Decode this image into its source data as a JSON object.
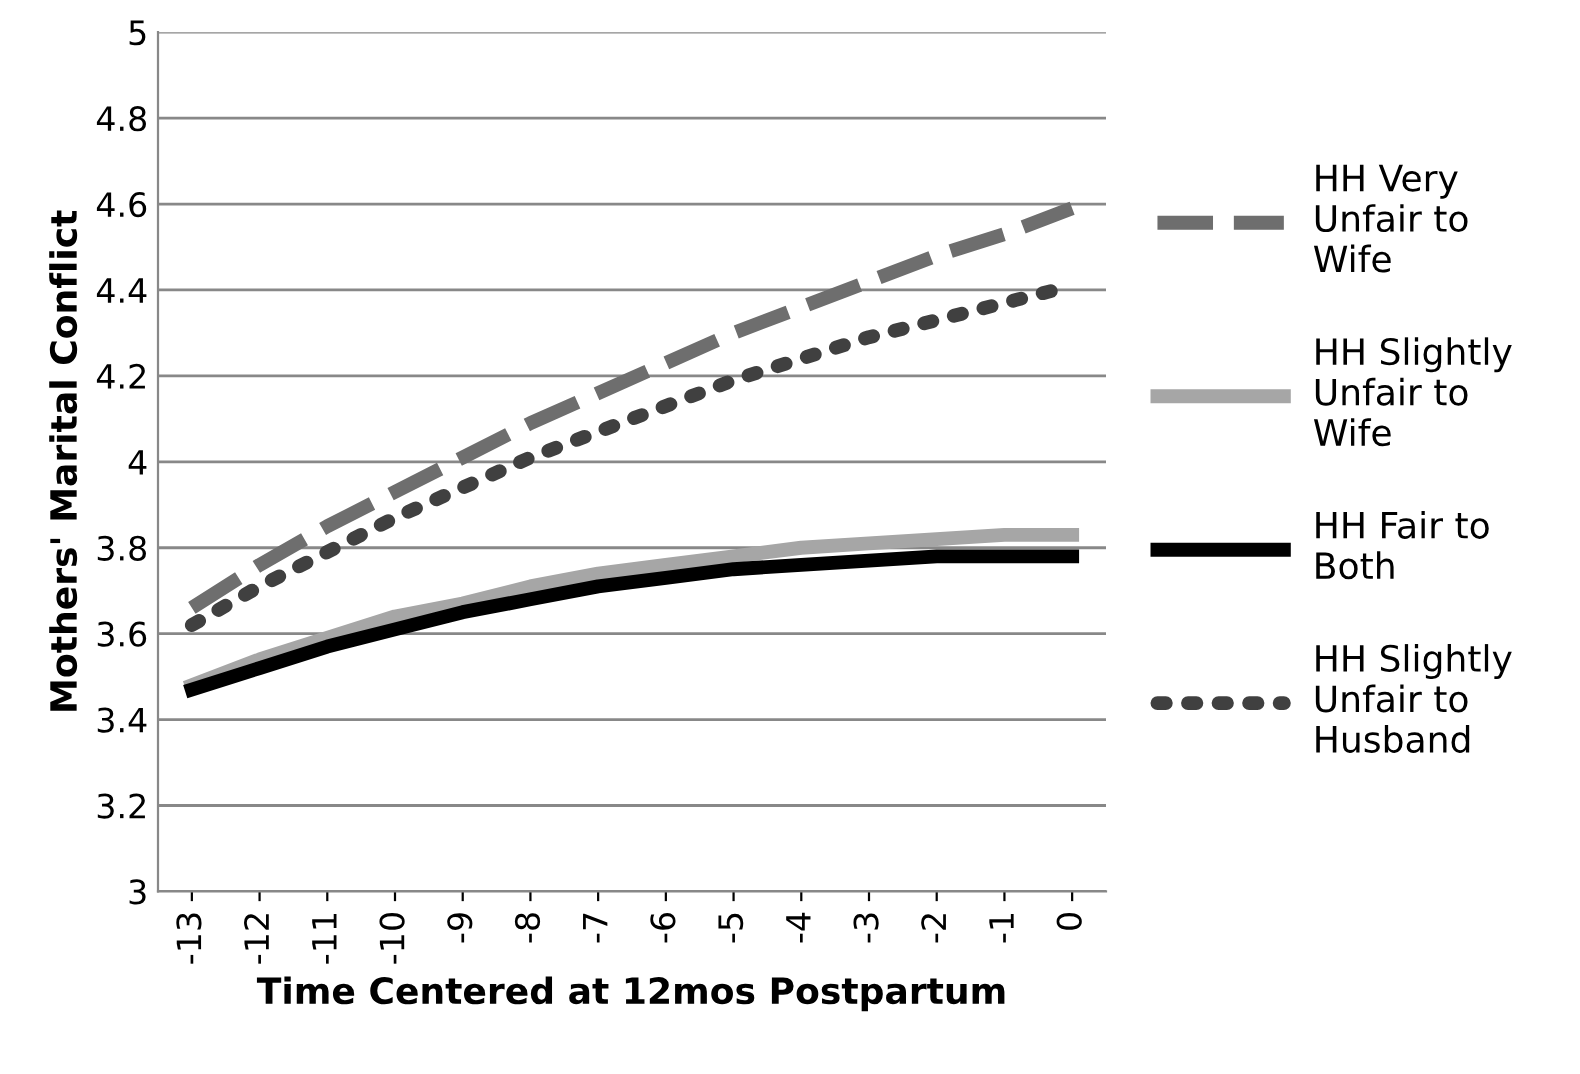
{
  "chart_data": {
    "type": "line",
    "xlabel": "Time Centered at 12mos Postpartum",
    "ylabel": "Mothers' Marital Conflict",
    "categories": [
      "-13",
      "-12",
      "-11",
      "-10",
      "-9",
      "-8",
      "-7",
      "-6",
      "-5",
      "-4",
      "-3",
      "-2",
      "-1",
      "0"
    ],
    "ylim": [
      3,
      5
    ],
    "yticks": [
      3,
      3.2,
      3.4,
      3.6,
      3.8,
      4,
      4.2,
      4.4,
      4.6,
      4.8,
      5
    ],
    "grid": "y",
    "legend": "right",
    "marker": "none",
    "series": [
      {
        "name": "HH Very\nUnfair to\nWife",
        "color": "#6e6e6e",
        "line_style": "dashed",
        "values": [
          3.66,
          3.76,
          3.85,
          3.93,
          4.01,
          4.09,
          4.16,
          4.23,
          4.3,
          4.36,
          4.42,
          4.48,
          4.53,
          4.59
        ]
      },
      {
        "name": "HH Slightly\nUnfair to\nWife",
        "color": "#a6a6a6",
        "line_style": "solid",
        "values": [
          3.48,
          3.54,
          3.59,
          3.64,
          3.67,
          3.71,
          3.74,
          3.76,
          3.78,
          3.8,
          3.81,
          3.82,
          3.83,
          3.83
        ]
      },
      {
        "name": "HH Fair to\nBoth",
        "color": "#000000",
        "line_style": "solid",
        "values": [
          3.47,
          3.52,
          3.57,
          3.61,
          3.65,
          3.68,
          3.71,
          3.73,
          3.75,
          3.76,
          3.77,
          3.78,
          3.78,
          3.78
        ]
      },
      {
        "name": "HH Slightly\nUnfair to\nHusband",
        "color": "#404040",
        "line_style": "dotted",
        "values": [
          3.62,
          3.71,
          3.79,
          3.87,
          3.94,
          4.01,
          4.07,
          4.13,
          4.19,
          4.24,
          4.29,
          4.33,
          4.37,
          4.41
        ]
      }
    ]
  }
}
